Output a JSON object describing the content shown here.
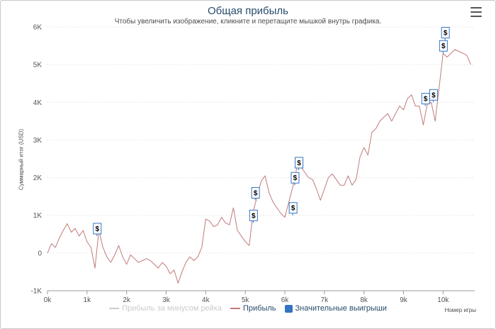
{
  "chart_data": {
    "type": "line",
    "title": "Общая прибыль",
    "subtitle": "Чтобы увеличить изображение, кликните и перетащите мышкой внутрь графика.",
    "ylabel": "Суммарный итог (USD)",
    "xlabel": "Номер игры",
    "xlim": [
      0,
      10800
    ],
    "ylim": [
      -1000,
      6000
    ],
    "x_ticks": [
      0,
      1000,
      2000,
      3000,
      4000,
      5000,
      6000,
      7000,
      8000,
      9000,
      10000
    ],
    "x_tick_labels": [
      "0k",
      "1k",
      "2k",
      "3k",
      "4k",
      "5k",
      "6k",
      "7k",
      "8k",
      "9k",
      "10k"
    ],
    "y_ticks": [
      -1000,
      0,
      1000,
      2000,
      3000,
      4000,
      5000,
      6000
    ],
    "y_tick_labels": [
      "-1K",
      "0",
      "1K",
      "2K",
      "3K",
      "4K",
      "5K",
      "6K"
    ],
    "grid": "horizontal dotted",
    "legend_position": "bottom",
    "series": [
      {
        "name": "Прибыль за минусом рейка",
        "color": "#cccccc",
        "hidden": true,
        "points": []
      },
      {
        "name": "Прибыль",
        "color": "#c27a7a",
        "points": [
          [
            0,
            0
          ],
          [
            100,
            250
          ],
          [
            200,
            150
          ],
          [
            300,
            400
          ],
          [
            400,
            600
          ],
          [
            500,
            780
          ],
          [
            600,
            550
          ],
          [
            700,
            650
          ],
          [
            800,
            450
          ],
          [
            900,
            600
          ],
          [
            1000,
            300
          ],
          [
            1100,
            150
          ],
          [
            1200,
            -400
          ],
          [
            1300,
            600
          ],
          [
            1400,
            150
          ],
          [
            1500,
            -100
          ],
          [
            1600,
            -250
          ],
          [
            1700,
            -50
          ],
          [
            1800,
            200
          ],
          [
            1900,
            -100
          ],
          [
            2000,
            -300
          ],
          [
            2100,
            -50
          ],
          [
            2200,
            -150
          ],
          [
            2300,
            -250
          ],
          [
            2400,
            -200
          ],
          [
            2500,
            -150
          ],
          [
            2600,
            -200
          ],
          [
            2700,
            -300
          ],
          [
            2800,
            -400
          ],
          [
            2900,
            -250
          ],
          [
            3000,
            -350
          ],
          [
            3100,
            -550
          ],
          [
            3200,
            -450
          ],
          [
            3300,
            -800
          ],
          [
            3400,
            -500
          ],
          [
            3500,
            -250
          ],
          [
            3600,
            -100
          ],
          [
            3700,
            -200
          ],
          [
            3800,
            -100
          ],
          [
            3900,
            150
          ],
          [
            4000,
            900
          ],
          [
            4100,
            850
          ],
          [
            4200,
            700
          ],
          [
            4300,
            750
          ],
          [
            4400,
            950
          ],
          [
            4500,
            800
          ],
          [
            4600,
            750
          ],
          [
            4700,
            1200
          ],
          [
            4800,
            600
          ],
          [
            4900,
            450
          ],
          [
            5000,
            300
          ],
          [
            5100,
            200
          ],
          [
            5200,
            1100
          ],
          [
            5300,
            1500
          ],
          [
            5400,
            1900
          ],
          [
            5500,
            2050
          ],
          [
            5600,
            1600
          ],
          [
            5700,
            1350
          ],
          [
            5800,
            1200
          ],
          [
            5900,
            1050
          ],
          [
            6000,
            950
          ],
          [
            6100,
            1350
          ],
          [
            6200,
            1750
          ],
          [
            6300,
            2250
          ],
          [
            6400,
            2300
          ],
          [
            6500,
            2150
          ],
          [
            6600,
            2000
          ],
          [
            6700,
            1950
          ],
          [
            6800,
            1700
          ],
          [
            6900,
            1400
          ],
          [
            7000,
            1700
          ],
          [
            7100,
            2000
          ],
          [
            7200,
            2100
          ],
          [
            7300,
            1950
          ],
          [
            7400,
            1800
          ],
          [
            7500,
            1800
          ],
          [
            7600,
            2050
          ],
          [
            7700,
            1800
          ],
          [
            7800,
            1950
          ],
          [
            7900,
            2550
          ],
          [
            8000,
            2800
          ],
          [
            8100,
            2600
          ],
          [
            8200,
            3200
          ],
          [
            8300,
            3300
          ],
          [
            8400,
            3500
          ],
          [
            8500,
            3600
          ],
          [
            8600,
            3700
          ],
          [
            8700,
            3500
          ],
          [
            8800,
            3700
          ],
          [
            8900,
            3900
          ],
          [
            9000,
            3800
          ],
          [
            9100,
            4100
          ],
          [
            9200,
            4200
          ],
          [
            9300,
            3900
          ],
          [
            9400,
            3900
          ],
          [
            9500,
            3400
          ],
          [
            9600,
            3950
          ],
          [
            9700,
            4000
          ],
          [
            9800,
            3500
          ],
          [
            9900,
            4400
          ],
          [
            10000,
            5300
          ],
          [
            10100,
            5200
          ],
          [
            10200,
            5300
          ],
          [
            10300,
            5400
          ],
          [
            10400,
            5350
          ],
          [
            10500,
            5300
          ],
          [
            10600,
            5250
          ],
          [
            10700,
            5000
          ]
        ]
      }
    ],
    "flags": {
      "name": "Значительные выигрыши",
      "color": "#3374c3",
      "symbol": "$",
      "points": [
        [
          1250,
          450
        ],
        [
          5200,
          800
        ],
        [
          5250,
          1400
        ],
        [
          6200,
          1000
        ],
        [
          6250,
          1800
        ],
        [
          6350,
          2200
        ],
        [
          9550,
          3900
        ],
        [
          9750,
          4000
        ],
        [
          10000,
          5300
        ],
        [
          10050,
          5650
        ]
      ]
    }
  }
}
